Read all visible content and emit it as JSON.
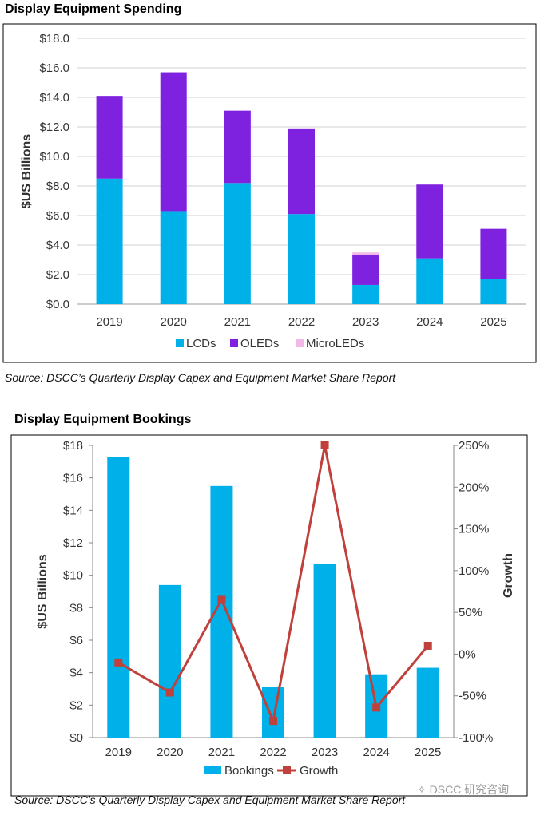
{
  "chart_data": [
    {
      "type": "bar",
      "stacked": true,
      "title": "Display Equipment Spending",
      "ylabel": "$US Billions",
      "xlabel": "",
      "ylim": [
        0,
        18
      ],
      "yticks": [
        "$0.0",
        "$2.0",
        "$4.0",
        "$6.0",
        "$8.0",
        "$10.0",
        "$12.0",
        "$14.0",
        "$16.0",
        "$18.0"
      ],
      "categories": [
        "2019",
        "2020",
        "2021",
        "2022",
        "2023",
        "2024",
        "2025"
      ],
      "series": [
        {
          "name": "LCDs",
          "color": "#00b0e8",
          "values": [
            8.5,
            6.3,
            8.2,
            6.1,
            1.3,
            3.1,
            1.7
          ]
        },
        {
          "name": "OLEDs",
          "color": "#7e22e0",
          "values": [
            5.6,
            9.4,
            4.9,
            5.8,
            2.0,
            5.0,
            3.4
          ]
        },
        {
          "name": "MicroLEDs",
          "color": "#f2b8e8",
          "values": [
            0,
            0,
            0,
            0,
            0.2,
            0.05,
            0
          ]
        }
      ],
      "grid": true,
      "legend": "bottom",
      "source": "Source: DSCC’s Quarterly Display Capex and Equipment Market Share Report"
    },
    {
      "type": "bar",
      "title": "Display Equipment Bookings",
      "ylabel": "$US Billions",
      "y2label": "Growth",
      "ylim": [
        0,
        18
      ],
      "y2lim": [
        -100,
        250
      ],
      "yticks": [
        "$0",
        "$2",
        "$4",
        "$6",
        "$8",
        "$10",
        "$12",
        "$14",
        "$16",
        "$18"
      ],
      "y2ticks": [
        "-100%",
        "-50%",
        "0%",
        "50%",
        "100%",
        "150%",
        "200%",
        "250%"
      ],
      "categories": [
        "2019",
        "2020",
        "2021",
        "2022",
        "2023",
        "2024",
        "2025"
      ],
      "series": [
        {
          "name": "Bookings",
          "type": "bar",
          "color": "#00b0e8",
          "values": [
            17.3,
            9.4,
            15.5,
            3.1,
            10.7,
            3.9,
            4.3
          ]
        },
        {
          "name": "Growth",
          "type": "line",
          "axis": "right",
          "color": "#c0403c",
          "values": [
            -10,
            -46,
            65,
            -80,
            250,
            -64,
            10
          ]
        }
      ],
      "grid": false,
      "legend": "bottom",
      "source": "Source: DSCC’s Quarterly Display Capex and Equipment Market Share Report"
    }
  ],
  "watermark": "DSCC 研究咨询"
}
